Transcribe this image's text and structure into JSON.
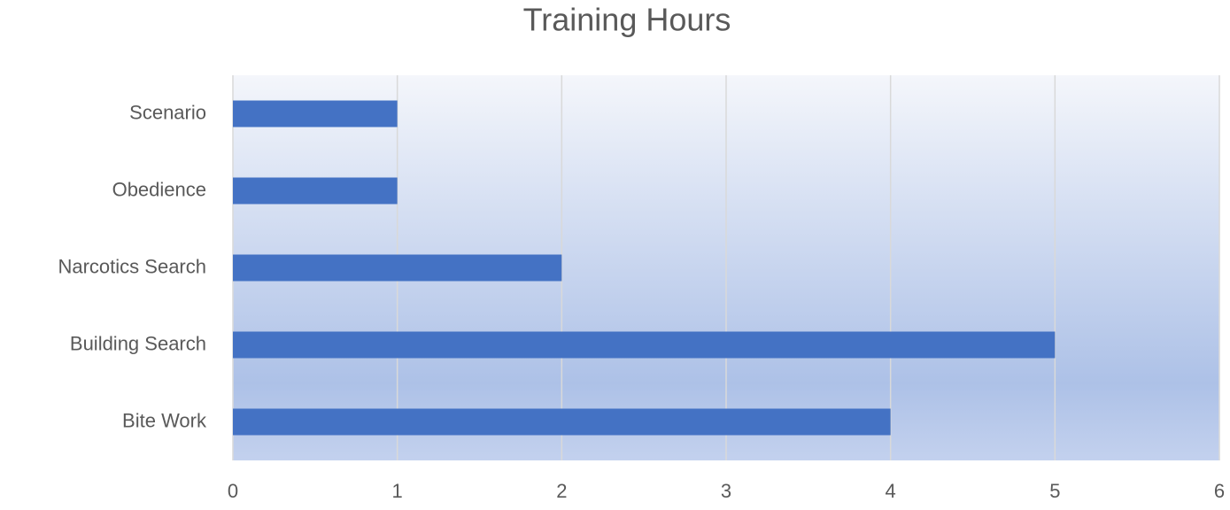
{
  "chart_data": {
    "type": "barh",
    "title": "Training Hours",
    "categories": [
      "Scenario",
      "Obedience",
      "Narcotics Search",
      "Building Search",
      "Bite Work"
    ],
    "values": [
      1,
      1,
      2,
      5,
      4
    ],
    "color": "#4472c4",
    "xlim": [
      0,
      6
    ],
    "xticks": [
      0,
      1,
      2,
      3,
      4,
      5,
      6
    ],
    "grid": true
  }
}
